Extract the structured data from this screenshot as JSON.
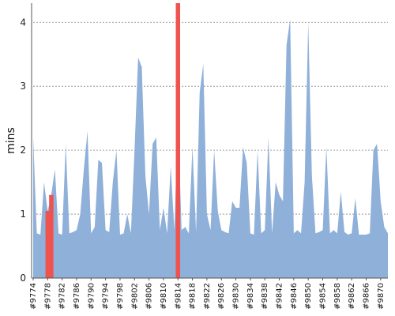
{
  "chart_data": {
    "type": "area",
    "title": "",
    "xlabel": "",
    "ylabel": "mins",
    "ylim": [
      0,
      4.3
    ],
    "yticks": [
      0,
      1,
      2,
      3,
      4
    ],
    "grid": "horizontal-dashed",
    "fill_color": "#8eb0d9",
    "highlight_color": "#ef5350",
    "x": [
      "#9774",
      "#9775",
      "#9776",
      "#9777",
      "#9778",
      "#9779",
      "#9780",
      "#9781",
      "#9782",
      "#9783",
      "#9784",
      "#9785",
      "#9786",
      "#9787",
      "#9788",
      "#9789",
      "#9790",
      "#9791",
      "#9792",
      "#9793",
      "#9794",
      "#9795",
      "#9796",
      "#9797",
      "#9798",
      "#9799",
      "#9800",
      "#9801",
      "#9802",
      "#9803",
      "#9804",
      "#9805",
      "#9806",
      "#9807",
      "#9808",
      "#9809",
      "#9810",
      "#9811",
      "#9812",
      "#9813",
      "#9814",
      "#9815",
      "#9816",
      "#9817",
      "#9818",
      "#9819",
      "#9820",
      "#9821",
      "#9822",
      "#9823",
      "#9824",
      "#9825",
      "#9826",
      "#9827",
      "#9828",
      "#9829",
      "#9830",
      "#9831",
      "#9832",
      "#9833",
      "#9834",
      "#9835",
      "#9836",
      "#9837",
      "#9838",
      "#9839",
      "#9840",
      "#9841",
      "#9842",
      "#9843",
      "#9844",
      "#9845",
      "#9846",
      "#9847",
      "#9848",
      "#9849",
      "#9850",
      "#9851",
      "#9852",
      "#9853",
      "#9854",
      "#9855",
      "#9856",
      "#9857",
      "#9858",
      "#9859",
      "#9860",
      "#9861",
      "#9862",
      "#9863",
      "#9864",
      "#9865",
      "#9866",
      "#9867",
      "#9868",
      "#9869",
      "#9870",
      "#9871",
      "#9872"
    ],
    "values": [
      2.2,
      0.7,
      0.68,
      1.5,
      1.05,
      1.3,
      1.7,
      0.7,
      0.68,
      2.1,
      0.7,
      0.72,
      0.75,
      1.0,
      1.7,
      2.3,
      0.7,
      0.8,
      1.85,
      1.8,
      0.75,
      0.72,
      1.5,
      2.0,
      0.68,
      0.7,
      1.0,
      0.7,
      2.0,
      3.45,
      3.3,
      1.6,
      1.0,
      2.1,
      2.2,
      0.75,
      1.1,
      0.7,
      1.75,
      0.75,
      2.5,
      0.75,
      0.8,
      0.7,
      2.05,
      0.72,
      2.9,
      3.35,
      1.0,
      0.75,
      2.0,
      1.05,
      0.75,
      0.72,
      0.7,
      1.2,
      1.1,
      1.1,
      2.05,
      1.8,
      0.7,
      0.68,
      2.0,
      0.7,
      0.75,
      2.2,
      0.7,
      1.5,
      1.3,
      1.2,
      3.65,
      4.05,
      0.7,
      0.75,
      0.7,
      1.5,
      4.0,
      1.6,
      0.7,
      0.72,
      0.75,
      2.05,
      0.7,
      0.75,
      0.7,
      1.35,
      0.72,
      0.68,
      0.7,
      1.25,
      0.68,
      0.68,
      0.68,
      0.7,
      2.0,
      2.1,
      1.2,
      0.8,
      0.7
    ],
    "highlights": [
      {
        "x": "#9778",
        "value": 1.05
      },
      {
        "x": "#9779",
        "value": 1.3
      },
      {
        "x": "#9814",
        "value": 4.3
      }
    ],
    "xtick_labels": [
      "#9774",
      "#9778",
      "#9782",
      "#9786",
      "#9790",
      "#9794",
      "#9798",
      "#9802",
      "#9806",
      "#9810",
      "#9814",
      "#9818",
      "#9822",
      "#9826",
      "#9830",
      "#9834",
      "#9838",
      "#9842",
      "#9846",
      "#9850",
      "#9854",
      "#9858",
      "#9862",
      "#9866",
      "#9870"
    ]
  }
}
